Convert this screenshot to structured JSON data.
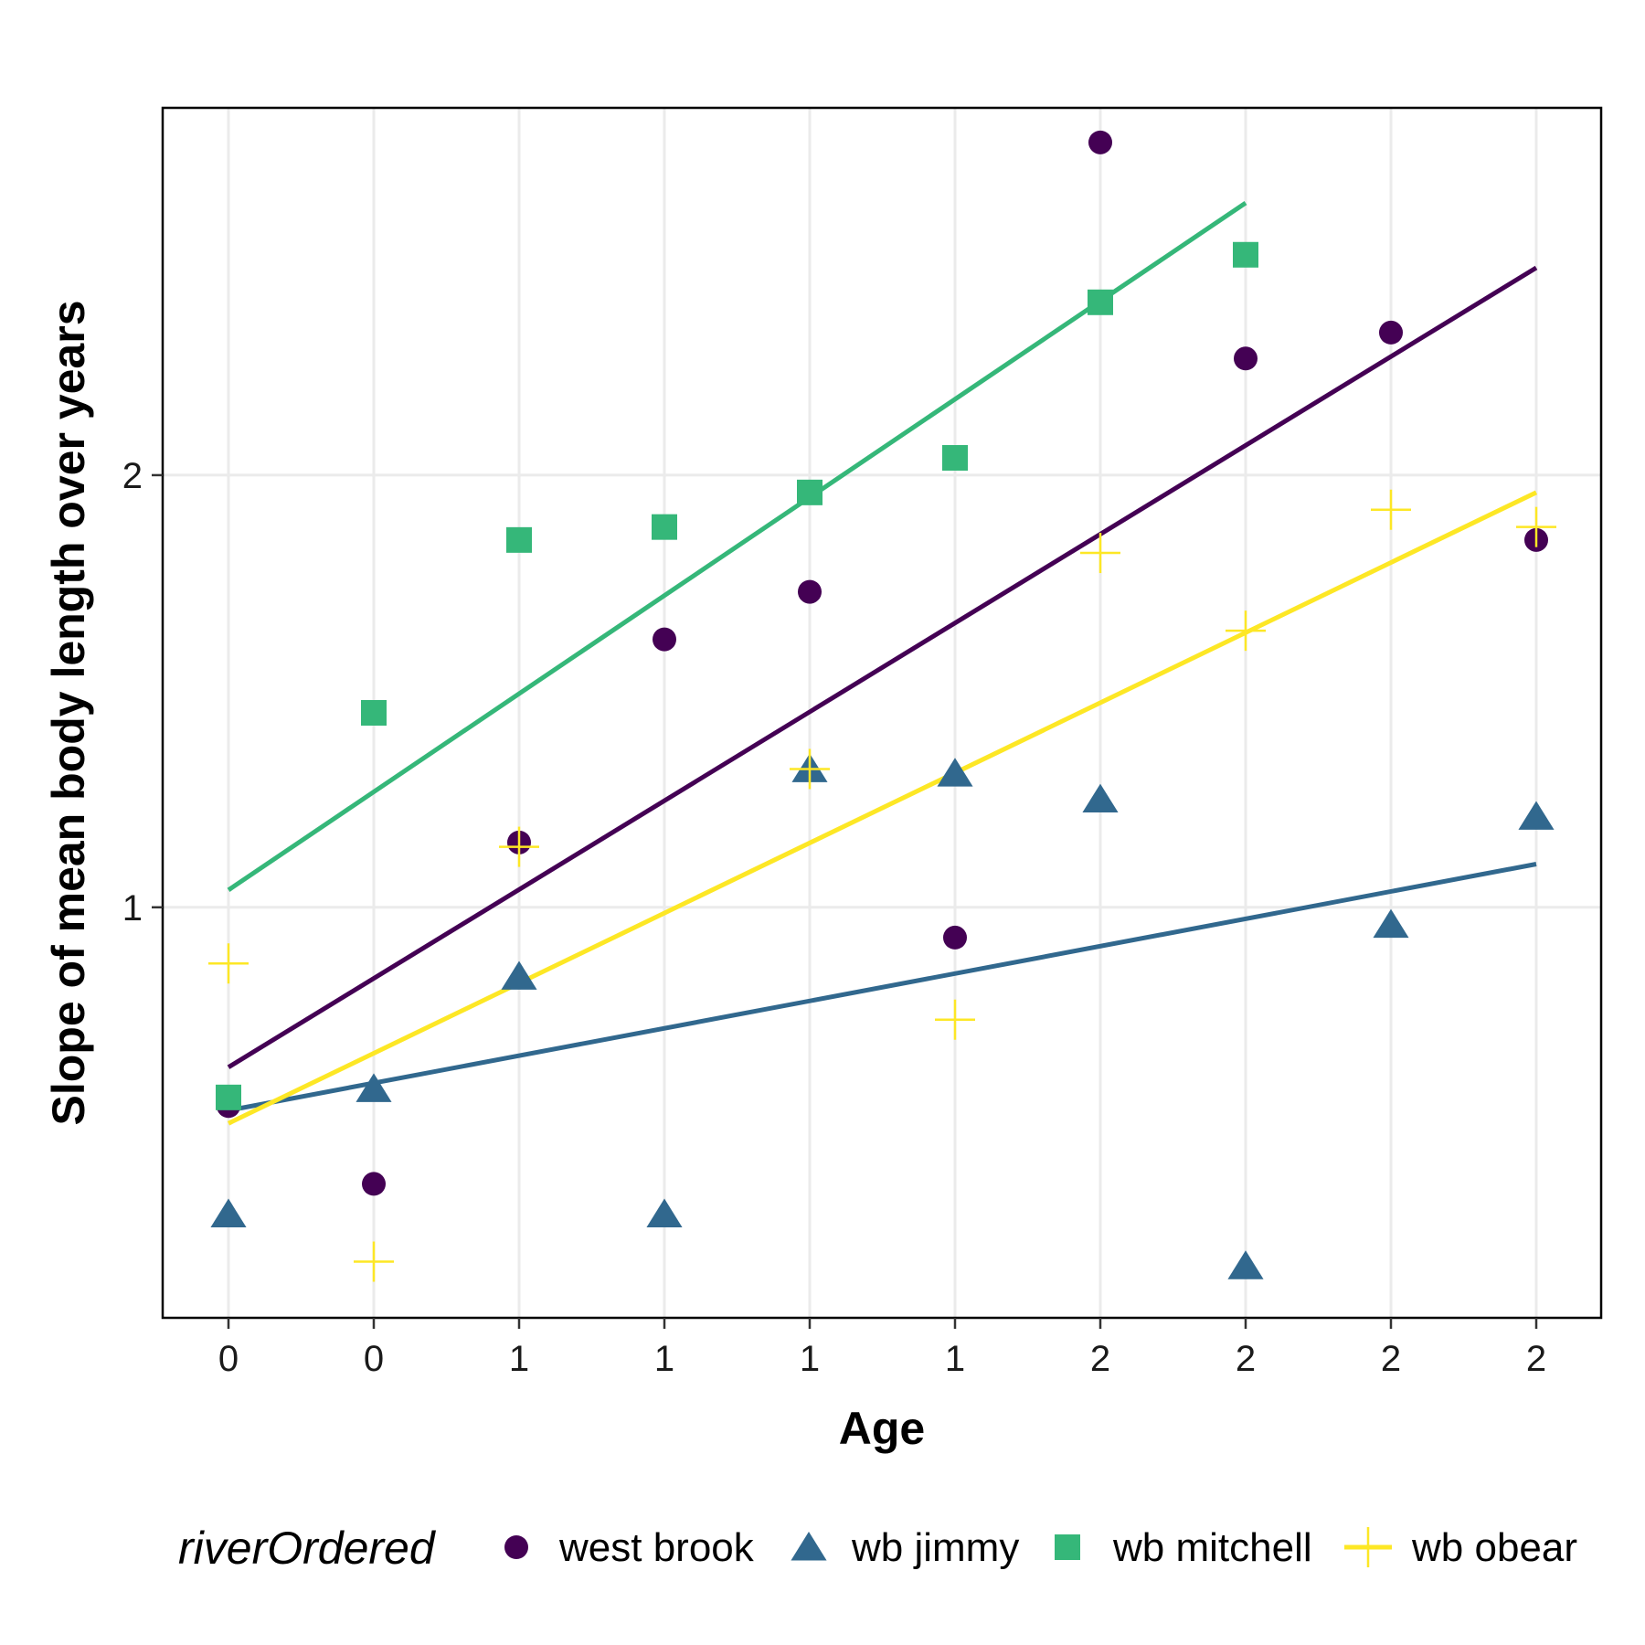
{
  "chart_data": {
    "type": "scatter",
    "xlabel": "Age",
    "ylabel": "Slope of mean body length over years",
    "x_tick_labels": [
      "0",
      "0",
      "1",
      "1",
      "1",
      "1",
      "2",
      "2",
      "2",
      "2"
    ],
    "y_ticks": [
      1,
      2
    ],
    "y_tick_labels": [
      "1",
      "2"
    ],
    "ylim": [
      0.05,
      2.85
    ],
    "grid": true,
    "legend": {
      "title": "riverOrdered",
      "position": "bottom"
    },
    "series": [
      {
        "name": "west brook",
        "color": "#440154",
        "shape": "circle",
        "y": [
          0.54,
          0.36,
          1.15,
          1.62,
          1.73,
          0.93,
          2.77,
          2.27,
          2.33,
          1.85
        ],
        "fit": [
          0.63,
          2.48
        ]
      },
      {
        "name": "wb jimmy",
        "color": "#31688e",
        "shape": "triangle",
        "y": [
          0.29,
          0.58,
          0.84,
          0.29,
          1.32,
          1.31,
          1.25,
          0.17,
          0.96,
          1.21
        ],
        "fit": [
          0.53,
          1.1
        ]
      },
      {
        "name": "wb mitchell",
        "color": "#35b779",
        "shape": "square",
        "y": [
          0.56,
          1.45,
          1.85,
          1.88,
          1.96,
          2.04,
          2.4,
          2.51,
          null,
          null
        ],
        "fit_x_range": [
          0,
          7
        ],
        "fit": [
          1.04,
          2.63
        ]
      },
      {
        "name": "wb obear",
        "color": "#fde725",
        "shape": "plus",
        "y": [
          0.87,
          0.18,
          1.14,
          null,
          1.32,
          0.74,
          1.82,
          1.64,
          1.92,
          1.88
        ],
        "fit": [
          0.5,
          1.96
        ]
      }
    ]
  }
}
